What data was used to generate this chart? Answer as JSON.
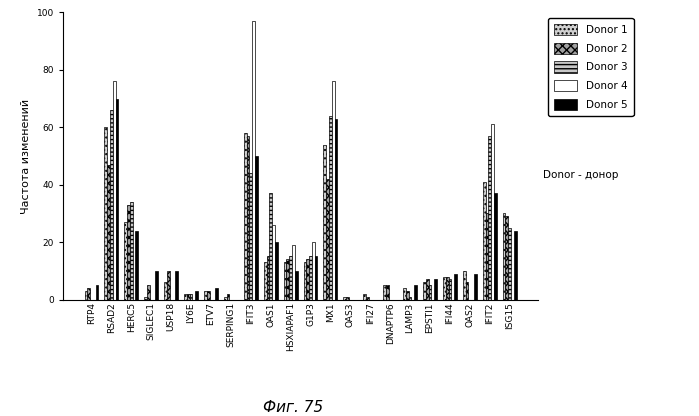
{
  "categories": [
    "RTP4",
    "RSAD2",
    "HERC5",
    "SIGLEC1",
    "USP18",
    "LY6E",
    "ETV7",
    "SERPING1",
    "IFIT3",
    "OAS1",
    "HSXIAPAF1",
    "G1P3",
    "MX1",
    "OAS3",
    "IFI27",
    "DNAPTP6",
    "LAMP3",
    "EPSTI1",
    "IFI44",
    "OAS2",
    "IFIT2",
    "ISG15"
  ],
  "donors": {
    "Donor 1": [
      3,
      60,
      27,
      1,
      6,
      2,
      3,
      1,
      58,
      13,
      13,
      13,
      54,
      1,
      2,
      5,
      4,
      6,
      8,
      10,
      41,
      30
    ],
    "Donor 2": [
      4,
      47,
      33,
      5,
      10,
      2,
      3,
      2,
      57,
      15,
      14,
      14,
      42,
      1,
      1,
      5,
      3,
      7,
      8,
      6,
      30,
      29
    ],
    "Donor 3": [
      0,
      66,
      34,
      0,
      0,
      2,
      0,
      0,
      44,
      37,
      15,
      15,
      64,
      0,
      0,
      0,
      1,
      5,
      7,
      0,
      57,
      25
    ],
    "Donor 4": [
      0,
      76,
      0,
      0,
      0,
      0,
      0,
      0,
      97,
      26,
      19,
      20,
      76,
      0,
      0,
      0,
      0,
      0,
      0,
      0,
      61,
      0
    ],
    "Donor 5": [
      5,
      70,
      24,
      10,
      10,
      3,
      4,
      0,
      50,
      20,
      10,
      15,
      63,
      0,
      0,
      0,
      5,
      7,
      9,
      9,
      37,
      24
    ]
  },
  "ylabel": "Частота изменений",
  "caption": "Фиг. 75",
  "legend_note": "Donor - донор",
  "ylim": [
    0,
    100
  ],
  "yticks": [
    0,
    20,
    40,
    60,
    80,
    100
  ],
  "hatch_styles": [
    "....",
    " xxxx",
    "----",
    "",
    ""
  ],
  "bar_colors": [
    "#d0d0d0",
    "#a0a0a0",
    "#c8c8c8",
    "#ffffff",
    "#000000"
  ],
  "edge_colors": [
    "#000000",
    "#000000",
    "#000000",
    "#000000",
    "#000000"
  ],
  "bar_width": 0.14,
  "figsize": [
    6.99,
    4.16
  ],
  "dpi": 100
}
